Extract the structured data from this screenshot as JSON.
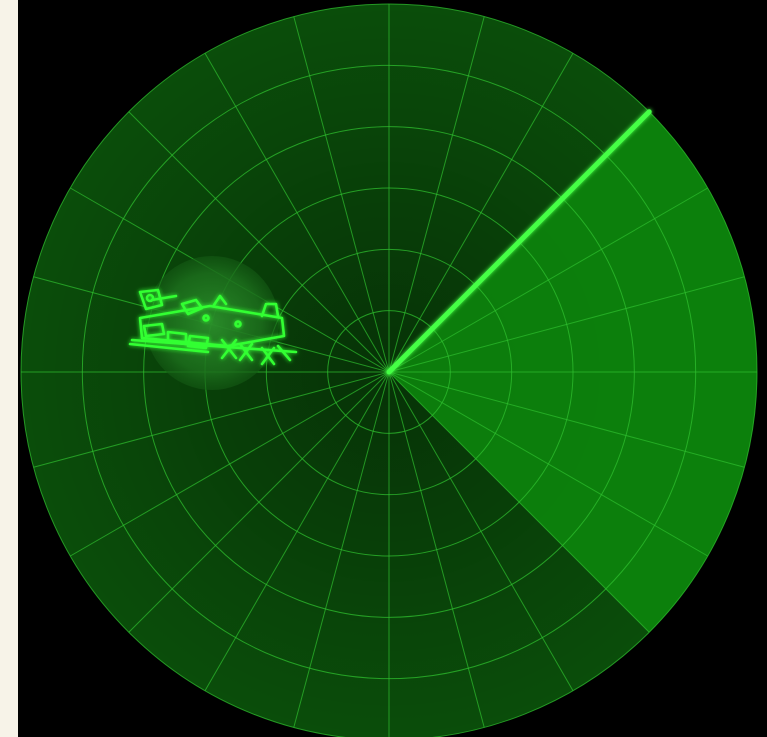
{
  "frame": {
    "background": "#f7f3e8",
    "screen_background": "#000000"
  },
  "radar": {
    "ring_count": 6,
    "spoke_count": 24,
    "colors": {
      "disc_fill": "#0a4d0a",
      "sweep_fill": "#0d8a0d",
      "grid": "#2fbf2f",
      "beam": "#44ff44",
      "target_glow": "#33ff33",
      "blip_fill": "#1f7a1f"
    },
    "sweep_heading_deg": 45,
    "sweep_trail_deg": 90,
    "target": {
      "icon": "locomotive-icon"
    }
  }
}
